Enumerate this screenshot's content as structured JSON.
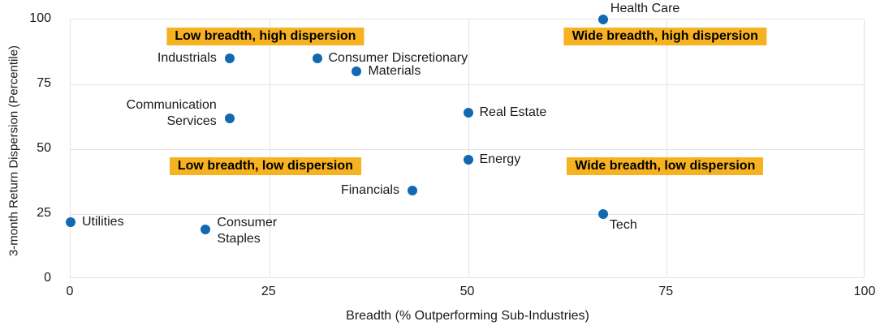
{
  "chart_data": {
    "type": "scatter",
    "xlabel": "Breadth (% Outperforming Sub-Industries)",
    "ylabel": "3-month Return Dispersion (Percentile)",
    "xlim": [
      0,
      100
    ],
    "ylim": [
      0,
      100
    ],
    "xticks": [
      0,
      25,
      50,
      75,
      100
    ],
    "yticks": [
      0,
      25,
      50,
      75,
      100
    ],
    "grid": true,
    "colors": {
      "dot": "#1268B1",
      "quadrant_bg": "#F6B221",
      "grid": "#E3E3E3",
      "text": "#1A1A1A"
    },
    "points": [
      {
        "label": "Health Care",
        "x": 67,
        "y": 100,
        "label_side": "top-right"
      },
      {
        "label": "Industrials",
        "x": 20,
        "y": 85,
        "label_side": "left"
      },
      {
        "label": "Consumer Discretionary",
        "x": 31,
        "y": 85,
        "label_side": "right"
      },
      {
        "label": "Materials",
        "x": 36,
        "y": 80,
        "label_side": "right"
      },
      {
        "label": "Communication Services",
        "x": 20,
        "y": 62,
        "label_side": "left",
        "two_line": [
          "Communication",
          "Services"
        ],
        "dy": -6
      },
      {
        "label": "Real Estate",
        "x": 50,
        "y": 64,
        "label_side": "right"
      },
      {
        "label": "Energy",
        "x": 50,
        "y": 46,
        "label_side": "right"
      },
      {
        "label": "Financials",
        "x": 43,
        "y": 34,
        "label_side": "left"
      },
      {
        "label": "Utilities",
        "x": 0,
        "y": 22,
        "label_side": "right"
      },
      {
        "label": "Consumer Staples",
        "x": 17,
        "y": 19,
        "label_side": "right",
        "two_line": [
          "Consumer",
          "Staples"
        ],
        "dy": 2
      },
      {
        "label": "Tech",
        "x": 67,
        "y": 25,
        "label_side": "bottom-right"
      }
    ],
    "quadrant_labels": [
      {
        "text": "Low breadth, high dispersion",
        "x": 24.5,
        "y": 93.5
      },
      {
        "text": "Wide breadth, high dispersion",
        "x": 74.8,
        "y": 93.5
      },
      {
        "text": "Low breadth, low dispersion",
        "x": 24.5,
        "y": 43.5
      },
      {
        "text": "Wide breadth, low dispersion",
        "x": 74.8,
        "y": 43.5
      }
    ]
  }
}
